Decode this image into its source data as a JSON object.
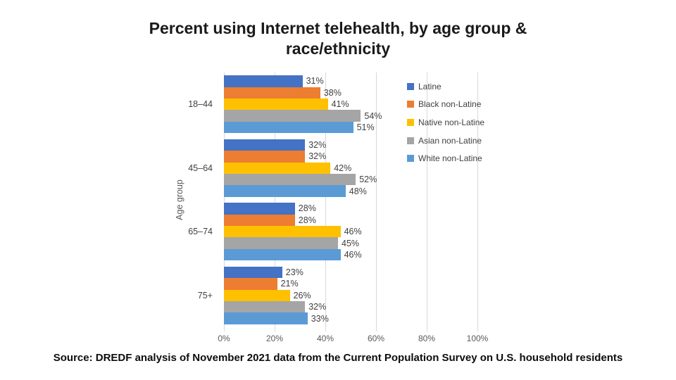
{
  "title": "Percent using Internet telehealth, by age group &\nrace/ethnicity",
  "source": "Source: DREDF analysis of November 2021 data from the Current Population Survey on U.S. household residents",
  "colors": {
    "gridline": "#D9D9D9",
    "axis_text": "#595959",
    "value_label_text": "#404040",
    "title_text": "#1a1a1a"
  },
  "chart_data": {
    "type": "bar",
    "orientation": "horizontal",
    "title": "Percent using Internet telehealth, by age group & race/ethnicity",
    "xlabel": "",
    "ylabel": "Age group",
    "xlim": [
      0,
      100
    ],
    "xticks": [
      "0%",
      "20%",
      "40%",
      "60%",
      "80%",
      "100%"
    ],
    "grid": true,
    "legend_position": "right",
    "value_suffix": "%",
    "categories": [
      "18–44",
      "45–64",
      "65–74",
      "75+"
    ],
    "series": [
      {
        "name": "Latine",
        "color": "#4472C4",
        "values": [
          31,
          32,
          28,
          23
        ]
      },
      {
        "name": "Black non-Latine",
        "color": "#ED7D31",
        "values": [
          38,
          32,
          28,
          21
        ]
      },
      {
        "name": "Native non-Latine",
        "color": "#FFC000",
        "values": [
          41,
          42,
          46,
          26
        ]
      },
      {
        "name": "Asian non-Latine",
        "color": "#A5A5A5",
        "values": [
          54,
          52,
          45,
          32
        ]
      },
      {
        "name": "White non-Latine",
        "color": "#5B9BD5",
        "values": [
          51,
          48,
          46,
          33
        ]
      }
    ]
  }
}
